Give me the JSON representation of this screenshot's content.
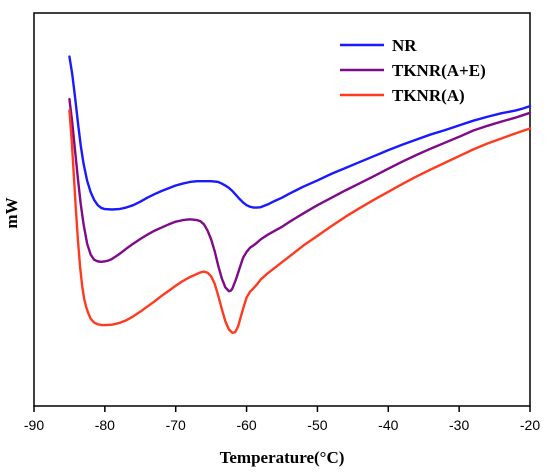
{
  "chart_data": {
    "type": "line",
    "title": "",
    "xlabel": "Temperature(°C)",
    "ylabel": "mW",
    "xlim": [
      -90,
      -20
    ],
    "ylim": [
      0,
      100
    ],
    "xticks": [
      -90,
      -80,
      -70,
      -60,
      -50,
      -40,
      -30,
      -20
    ],
    "y_tick_labels": false,
    "grid": false,
    "legend_position": "top-right",
    "series": [
      {
        "name": "NR",
        "color": "#1a1aff",
        "x": [
          -85,
          -84.6,
          -84.2,
          -83.8,
          -83.4,
          -83,
          -82.5,
          -82,
          -81.5,
          -81,
          -80.5,
          -80,
          -79,
          -78,
          -77,
          -76,
          -75,
          -74,
          -73,
          -72,
          -71,
          -70,
          -69,
          -68,
          -67,
          -66,
          -65,
          -64,
          -63.5,
          -63,
          -62.5,
          -62,
          -61.5,
          -61,
          -60.5,
          -60,
          -59.5,
          -59,
          -58.5,
          -58,
          -57,
          -56,
          -55,
          -54,
          -53,
          -52,
          -50,
          -48,
          -46,
          -44,
          -42,
          -40,
          -38,
          -36,
          -34,
          -32,
          -30,
          -28,
          -26,
          -24,
          -22,
          -21,
          -20
        ],
        "y": [
          88.9,
          84.4,
          78.5,
          72.1,
          66.2,
          61.6,
          57.3,
          54.4,
          52.4,
          51.1,
          50.4,
          50.1,
          50,
          50.1,
          50.5,
          51.1,
          52,
          53,
          53.9,
          54.7,
          55.4,
          56.1,
          56.6,
          57,
          57.2,
          57.2,
          57.2,
          57,
          56.6,
          56.1,
          55.5,
          54.7,
          53.7,
          52.7,
          51.8,
          51.1,
          50.7,
          50.5,
          50.5,
          50.6,
          51.3,
          52.2,
          53,
          54,
          54.9,
          55.8,
          57.4,
          59.1,
          60.6,
          62.1,
          63.6,
          65.1,
          66.5,
          67.8,
          69.1,
          70.2,
          71.4,
          72.6,
          73.6,
          74.5,
          75.2,
          75.7,
          76.3
        ]
      },
      {
        "name": "TKNR(A+E)",
        "color": "#7f0a8a",
        "x": [
          -85,
          -84.6,
          -84.2,
          -83.8,
          -83.4,
          -83,
          -82.5,
          -82,
          -81.5,
          -81,
          -80.5,
          -80,
          -79.5,
          -79,
          -78,
          -77,
          -76,
          -75,
          -74,
          -73,
          -72,
          -71,
          -70,
          -69,
          -68,
          -67,
          -66.5,
          -66,
          -65.5,
          -65,
          -64.5,
          -64,
          -63.5,
          -63,
          -62.5,
          -62.2,
          -62,
          -61.5,
          -61,
          -60.5,
          -60,
          -59.5,
          -59,
          -58.5,
          -58,
          -57,
          -56,
          -55,
          -54,
          -53,
          -52,
          -50,
          -48,
          -46,
          -44,
          -42,
          -40,
          -38,
          -36,
          -34,
          -32,
          -30,
          -28,
          -26,
          -24,
          -22,
          -21,
          -20
        ],
        "y": [
          78.1,
          72.1,
          64.9,
          57.8,
          51.3,
          46.2,
          41.3,
          38.5,
          37.2,
          36.8,
          36.7,
          36.8,
          37,
          37.4,
          38.6,
          40,
          41.3,
          42.5,
          43.6,
          44.6,
          45.4,
          46.2,
          46.9,
          47.3,
          47.5,
          47.3,
          47,
          46.2,
          44.6,
          42.4,
          39.4,
          35.7,
          32.5,
          30.2,
          29.2,
          29.4,
          29.9,
          32.2,
          35,
          37.7,
          39.2,
          40.3,
          40.9,
          41.6,
          42.4,
          43.6,
          44.6,
          45.6,
          46.8,
          47.9,
          49,
          51.1,
          53,
          54.9,
          56.7,
          58.5,
          60.4,
          62.2,
          63.9,
          65.5,
          67,
          68.5,
          70.1,
          71.3,
          72.4,
          73.4,
          74,
          74.6
        ]
      },
      {
        "name": "TKNR(A)",
        "color": "#ff3a1e",
        "x": [
          -85,
          -84.7,
          -84.4,
          -84.1,
          -83.8,
          -83.5,
          -83.2,
          -82.9,
          -82.6,
          -82.3,
          -82,
          -81.5,
          -81,
          -80.5,
          -80,
          -79,
          -78,
          -77,
          -76,
          -75,
          -74,
          -73,
          -72,
          -71,
          -70,
          -69,
          -68,
          -67,
          -66.5,
          -66,
          -65.5,
          -65,
          -64.5,
          -64,
          -63.5,
          -63,
          -62.5,
          -62,
          -61.6,
          -61.2,
          -60.8,
          -60.4,
          -60,
          -59.5,
          -59,
          -58.5,
          -58,
          -57,
          -56,
          -55,
          -54,
          -53,
          -52,
          -50,
          -48,
          -46,
          -44,
          -42,
          -40,
          -38,
          -36,
          -34,
          -32,
          -30,
          -28,
          -26,
          -24,
          -22,
          -21,
          -20
        ],
        "y": [
          75.2,
          68.2,
          59.3,
          50.3,
          42.2,
          35.5,
          30.5,
          27.1,
          25,
          23.4,
          22.2,
          21.2,
          20.8,
          20.6,
          20.6,
          20.7,
          21.1,
          21.8,
          22.8,
          24,
          25.3,
          26.6,
          28,
          29.3,
          30.6,
          31.8,
          32.8,
          33.6,
          34,
          34.2,
          33.9,
          33,
          31.1,
          28.1,
          24.7,
          21.6,
          19.5,
          18.6,
          18.8,
          20.2,
          22.8,
          25.3,
          27.6,
          29.1,
          30,
          31,
          32.2,
          33.8,
          35.2,
          36.6,
          38,
          39.4,
          40.8,
          43.3,
          45.8,
          48.2,
          50.4,
          52.5,
          54.5,
          56.5,
          58.4,
          60.2,
          61.9,
          63.6,
          65.3,
          66.8,
          68.1,
          69.4,
          70,
          70.6
        ]
      }
    ]
  }
}
